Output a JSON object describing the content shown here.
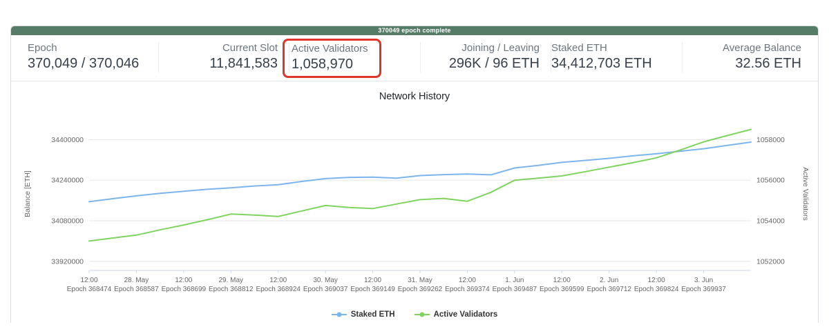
{
  "banner": {
    "text": "370049 epoch complete",
    "bg": "#567c68"
  },
  "stats": {
    "highlight_color": "#e0352b",
    "cells": [
      {
        "label": "Epoch",
        "value": "370,049 / 370,046"
      },
      {
        "label": "Current Slot",
        "value": "11,841,583"
      },
      {
        "label": "Active Validators",
        "value": "1,058,970"
      },
      {
        "label": "Joining / Leaving",
        "value": "296K / 96 ETH"
      },
      {
        "label": "Staked ETH",
        "value": "34,412,703 ETH"
      },
      {
        "label": "Average Balance",
        "value": "32.56 ETH"
      }
    ]
  },
  "chart_data": {
    "type": "line",
    "title": "Network History",
    "grid": true,
    "grid_color": "#e6e6e6",
    "axis_line_color": "#ccd6eb",
    "tick_text_color": "#666666",
    "left_axis": {
      "label": "Balance [ETH]",
      "ticks": [
        33920000,
        34080000,
        34240000,
        34400000
      ],
      "min": 33884000,
      "max": 34488000
    },
    "right_axis": {
      "label": "Active Validators",
      "ticks": [
        1052000,
        1054000,
        1056000,
        1058000
      ],
      "min": 1051550,
      "max": 1059100
    },
    "x_range": [
      0,
      14
    ],
    "x_ticks": [
      {
        "pos": 0,
        "line1": "12:00",
        "line2": "Epoch 368474"
      },
      {
        "pos": 1,
        "line1": "28. May",
        "line2": "Epoch 368587"
      },
      {
        "pos": 2,
        "line1": "12:00",
        "line2": "Epoch 368699"
      },
      {
        "pos": 3,
        "line1": "29. May",
        "line2": "Epoch 368812"
      },
      {
        "pos": 4,
        "line1": "12:00",
        "line2": "Epoch 368924"
      },
      {
        "pos": 5,
        "line1": "30. May",
        "line2": "Epoch 369037"
      },
      {
        "pos": 6,
        "line1": "12:00",
        "line2": "Epoch 369149"
      },
      {
        "pos": 7,
        "line1": "31. May",
        "line2": "Epoch 369262"
      },
      {
        "pos": 8,
        "line1": "12:00",
        "line2": "Epoch 369374"
      },
      {
        "pos": 9,
        "line1": "1. Jun",
        "line2": "Epoch 369487"
      },
      {
        "pos": 10,
        "line1": "12:00",
        "line2": "Epoch 369599"
      },
      {
        "pos": 11,
        "line1": "2. Jun",
        "line2": "Epoch 369712"
      },
      {
        "pos": 12,
        "line1": "12:00",
        "line2": "Epoch 369824"
      },
      {
        "pos": 13,
        "line1": "3. Jun",
        "line2": "Epoch 369937"
      }
    ],
    "series": [
      {
        "name": "Staked ETH",
        "color": "#7cb5ec",
        "axis": "left",
        "x_start": 0,
        "x_step": 0.5,
        "values": [
          34155000,
          34167000,
          34178000,
          34188000,
          34196000,
          34204000,
          34210000,
          34217000,
          34222000,
          34235000,
          34246000,
          34251000,
          34252000,
          34248000,
          34258000,
          34262000,
          34264000,
          34261000,
          34288000,
          34298000,
          34310000,
          34318000,
          34326000,
          34336000,
          34344000,
          34354000,
          34364000,
          34377000,
          34390000
        ]
      },
      {
        "name": "Active Validators",
        "color": "#7fd35f",
        "axis": "right",
        "x_start": 0,
        "x_step": 0.5,
        "values": [
          1053000,
          1053150,
          1053290,
          1053550,
          1053790,
          1054050,
          1054330,
          1054280,
          1054210,
          1054480,
          1054750,
          1054650,
          1054600,
          1054820,
          1055040,
          1055100,
          1054960,
          1055400,
          1056000,
          1056100,
          1056210,
          1056420,
          1056640,
          1056860,
          1057100,
          1057480,
          1057890,
          1058200,
          1058500
        ]
      }
    ],
    "legend": [
      "Staked ETH",
      "Active Validators"
    ]
  }
}
